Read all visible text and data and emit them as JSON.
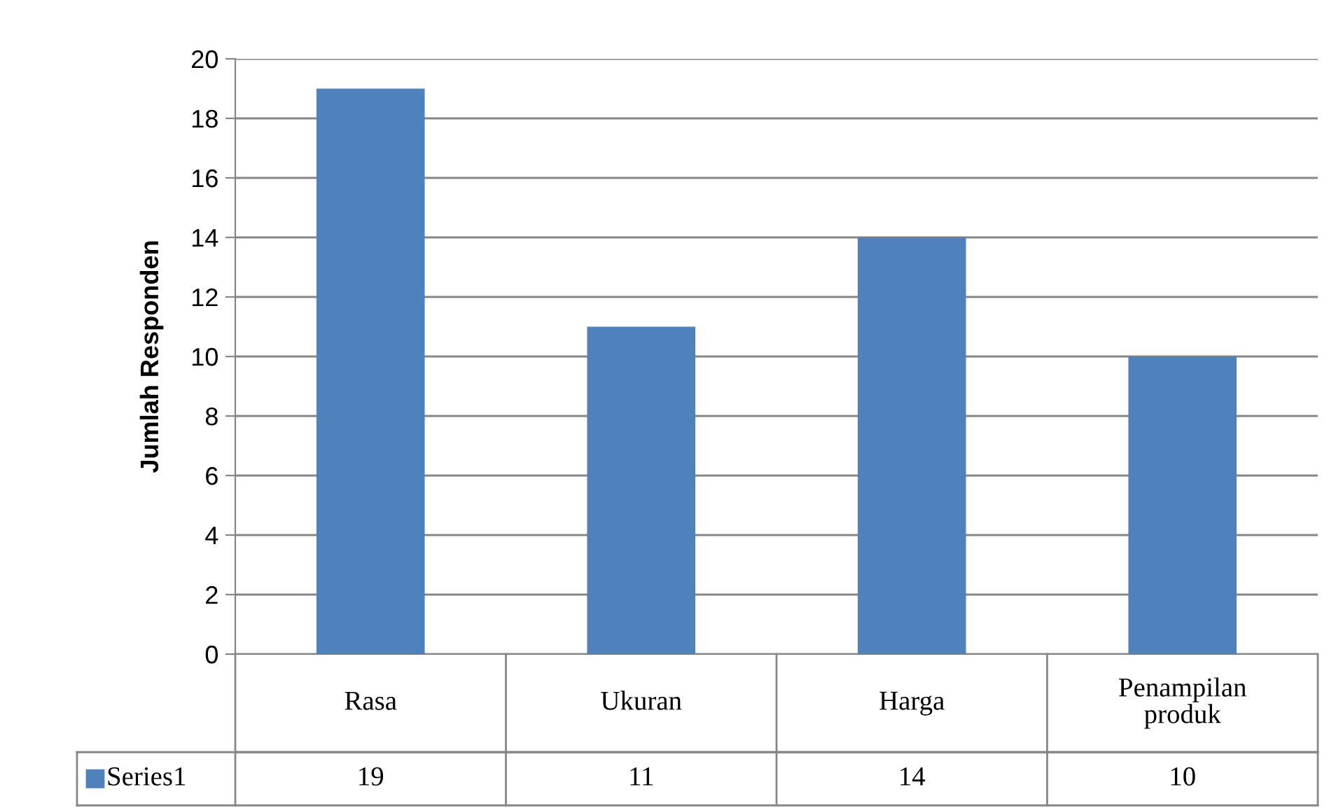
{
  "chart_data": {
    "type": "bar",
    "ylabel": "Jumlah Responden",
    "categories": [
      "Rasa",
      "Ukuran",
      "Harga",
      "Penampilan\nproduk"
    ],
    "series": [
      {
        "name": "Series1",
        "color": "#4f81bd",
        "values": [
          19,
          11,
          14,
          10
        ]
      }
    ],
    "ylim": [
      0,
      20
    ],
    "yticks": [
      0,
      2,
      4,
      6,
      8,
      10,
      12,
      14,
      16,
      18,
      20
    ],
    "grid": "y",
    "legend": "bottom",
    "data_labels": true
  }
}
